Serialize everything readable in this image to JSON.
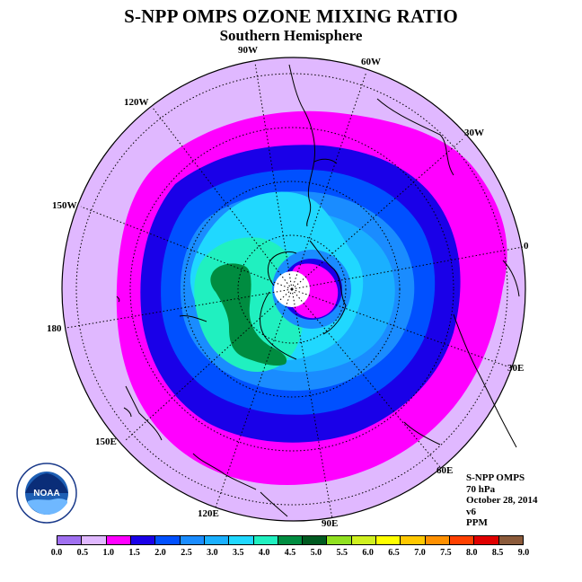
{
  "title": "S-NPP OMPS OZONE MIXING RATIO",
  "subtitle": "Southern Hemisphere",
  "longitudes": [
    {
      "label": "90W",
      "name": "lon-90w"
    },
    {
      "label": "60W",
      "name": "lon-60w"
    },
    {
      "label": "120W",
      "name": "lon-120w"
    },
    {
      "label": "30W",
      "name": "lon-30w"
    },
    {
      "label": "150W",
      "name": "lon-150w"
    },
    {
      "label": "0",
      "name": "lon-0"
    },
    {
      "label": "180",
      "name": "lon-180"
    },
    {
      "label": "30E",
      "name": "lon-30e"
    },
    {
      "label": "150E",
      "name": "lon-150e"
    },
    {
      "label": "60E",
      "name": "lon-60e"
    },
    {
      "label": "120E",
      "name": "lon-120e"
    },
    {
      "label": "90E",
      "name": "lon-90e"
    }
  ],
  "info": {
    "instrument": "S-NPP OMPS",
    "level": "70 hPa",
    "date": "October 28, 2014",
    "version": "v6",
    "units": "PPM"
  },
  "logo_text": "NOAA",
  "legend": {
    "ticks": [
      "0.0",
      "0.5",
      "1.0",
      "1.5",
      "2.0",
      "2.5",
      "3.0",
      "3.5",
      "4.0",
      "4.5",
      "5.0",
      "5.5",
      "6.0",
      "6.5",
      "7.0",
      "7.5",
      "8.0",
      "8.5",
      "9.0"
    ],
    "colors": [
      "#a070f0",
      "#e0b8ff",
      "#ff00ff",
      "#1a00e8",
      "#0050ff",
      "#1a8cff",
      "#1ab0ff",
      "#20d8ff",
      "#20f0c0",
      "#008c40",
      "#005a20",
      "#90e020",
      "#d0f020",
      "#ffff00",
      "#ffc800",
      "#ff9000",
      "#ff4000",
      "#e00000",
      "#8b5a3a"
    ]
  },
  "colors": {
    "background_ring": "#e0b8ff",
    "polar_hole": "#ffffff"
  }
}
